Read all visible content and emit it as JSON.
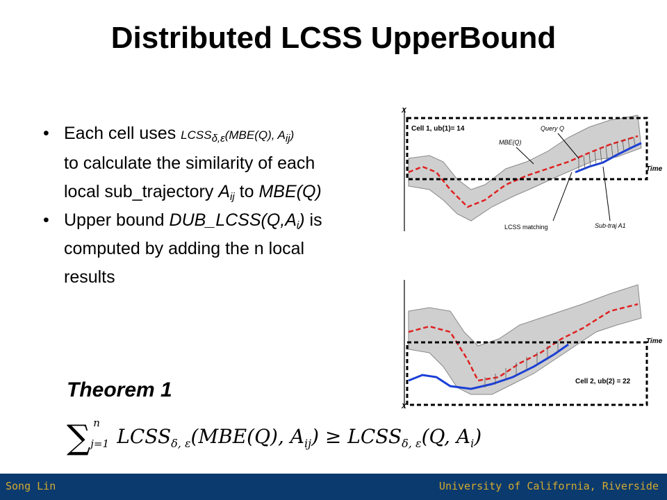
{
  "title": "Distributed LCSS UpperBound",
  "bullets": {
    "b1_line1": "Each cell uses",
    "b1_fn": "LCSS",
    "b1_fn_sub": "δ,ε",
    "b1_args": "(MBE(Q), A",
    "b1_args_sub": "ij",
    "b1_args_end": ")",
    "b1_line2": "to calculate the similarity of each",
    "b1_line3_pre": "local sub_trajectory",
    "b1_line3_A": "A",
    "b1_line3_sub": "ij",
    "b1_line3_mid": "to",
    "b1_line3_end": "MBE(Q)",
    "b2_pre": "Upper bound",
    "b2_fn": "DUB_LCSS(Q,A",
    "b2_sub": "i",
    "b2_end": ")",
    "b2_post": "is",
    "b2_line2": "computed by adding the n local",
    "b2_line3": "results"
  },
  "theorem": "Theorem 1",
  "formula": {
    "sum": "∑",
    "upper": "n",
    "lower": "j=1",
    "lhs": "LCSS",
    "sub": "δ, ε",
    "lhs_args": "(MBE(Q), A",
    "lhs_sub": "ij",
    "lhs_close": ")",
    "rel": "≥",
    "rhs": "LCSS",
    "rhs_sub": "δ, ε",
    "rhs_args": "(Q, A",
    "rhs_sub2": "i",
    "rhs_close": ")"
  },
  "figure": {
    "top": {
      "cell_label": "Cell 1, ub(1)= 14",
      "axis_x": "X",
      "time": "Time",
      "query": "Query Q",
      "mbe": "MBE(Q)",
      "lcss": "LCSS matching",
      "subtraj": "Sub-traj A1"
    },
    "bottom": {
      "cell_label": "Cell 2, ub(2) = 22",
      "axis_x": "X",
      "time": "Time"
    }
  },
  "footer": {
    "left": "Song Lin",
    "right": "University of California, Riverside"
  }
}
